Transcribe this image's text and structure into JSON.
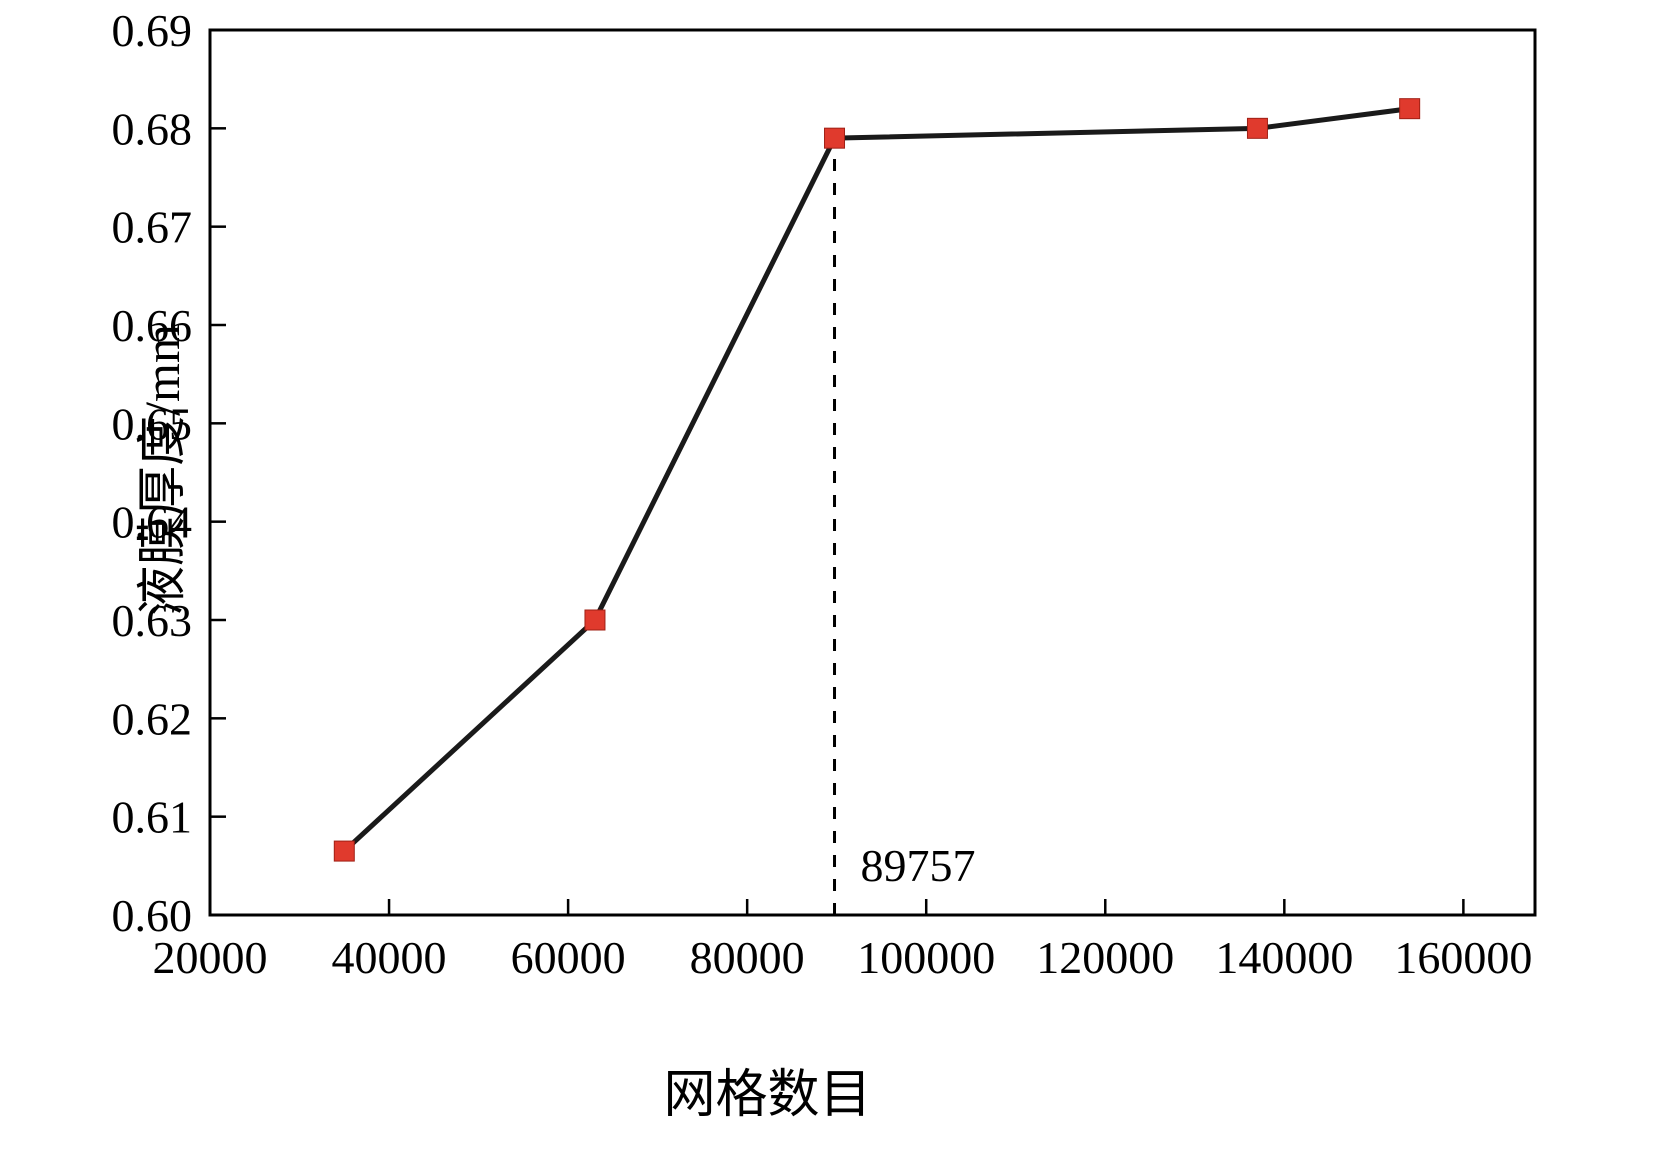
{
  "chart_data": {
    "type": "line",
    "title": "",
    "xlabel": "网格数目",
    "ylabel": "液膜厚度/mm",
    "xlim": [
      20000,
      168000
    ],
    "ylim": [
      0.6,
      0.69
    ],
    "grid": false,
    "legend": "none",
    "x_ticks": [
      {
        "value": 20000,
        "label": "20000"
      },
      {
        "value": 40000,
        "label": "40000"
      },
      {
        "value": 60000,
        "label": "60000"
      },
      {
        "value": 80000,
        "label": "80000"
      },
      {
        "value": 100000,
        "label": "100000"
      },
      {
        "value": 120000,
        "label": "120000"
      },
      {
        "value": 140000,
        "label": "140000"
      },
      {
        "value": 160000,
        "label": "160000"
      }
    ],
    "y_ticks": [
      {
        "value": 0.6,
        "label": "0.60"
      },
      {
        "value": 0.61,
        "label": "0.61"
      },
      {
        "value": 0.62,
        "label": "0.62"
      },
      {
        "value": 0.63,
        "label": "0.63"
      },
      {
        "value": 0.64,
        "label": "0.64"
      },
      {
        "value": 0.65,
        "label": "0.65"
      },
      {
        "value": 0.66,
        "label": "0.66"
      },
      {
        "value": 0.67,
        "label": "0.67"
      },
      {
        "value": 0.68,
        "label": "0.68"
      },
      {
        "value": 0.69,
        "label": "0.69"
      }
    ],
    "series": [
      {
        "name": "液膜厚度",
        "x": [
          35000,
          63000,
          89757,
          137000,
          154000
        ],
        "y": [
          0.6065,
          0.63,
          0.679,
          0.68,
          0.682
        ],
        "line_color": "#1a1a1a",
        "marker": "square",
        "marker_color": "#e03a2d"
      }
    ],
    "annotation": {
      "x": 89757,
      "y_top": 0.679,
      "label": "89757",
      "line_style": "dashed"
    }
  },
  "colors": {
    "background": "#ffffff",
    "axis": "#000000",
    "line": "#1a1a1a",
    "marker": "#e03a2d",
    "text": "#000000"
  }
}
